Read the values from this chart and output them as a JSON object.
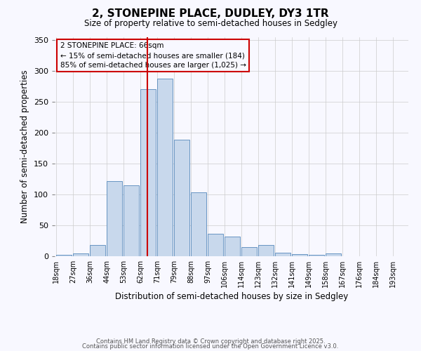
{
  "title": "2, STONEPINE PLACE, DUDLEY, DY3 1TR",
  "subtitle": "Size of property relative to semi-detached houses in Sedgley",
  "xlabel": "Distribution of semi-detached houses by size in Sedgley",
  "ylabel": "Number of semi-detached properties",
  "bar_values": [
    2,
    5,
    18,
    122,
    115,
    270,
    287,
    189,
    103,
    36,
    32,
    15,
    18,
    6,
    3,
    2,
    4
  ],
  "bin_width": 9,
  "all_tick_labels": [
    "18sqm",
    "27sqm",
    "36sqm",
    "44sqm",
    "53sqm",
    "62sqm",
    "71sqm",
    "79sqm",
    "88sqm",
    "97sqm",
    "106sqm",
    "114sqm",
    "123sqm",
    "132sqm",
    "141sqm",
    "149sqm",
    "158sqm",
    "167sqm",
    "176sqm",
    "184sqm",
    "193sqm"
  ],
  "bar_color": "#c8d8ec",
  "bar_edge_color": "#5588bb",
  "grid_color": "#cccccc",
  "background_color": "#f8f8ff",
  "annotation_box_color": "#cc0000",
  "vline_color": "#cc0000",
  "vline_x": 66,
  "annotation_title": "2 STONEPINE PLACE: 66sqm",
  "annotation_line1": "← 15% of semi-detached houses are smaller (184)",
  "annotation_line2": "85% of semi-detached houses are larger (1,025) →",
  "ylim": [
    0,
    355
  ],
  "footer1": "Contains HM Land Registry data © Crown copyright and database right 2025.",
  "footer2": "Contains public sector information licensed under the Open Government Licence v3.0.",
  "yticks": [
    0,
    50,
    100,
    150,
    200,
    250,
    300,
    350
  ],
  "n_bars": 17,
  "n_ticks": 21
}
